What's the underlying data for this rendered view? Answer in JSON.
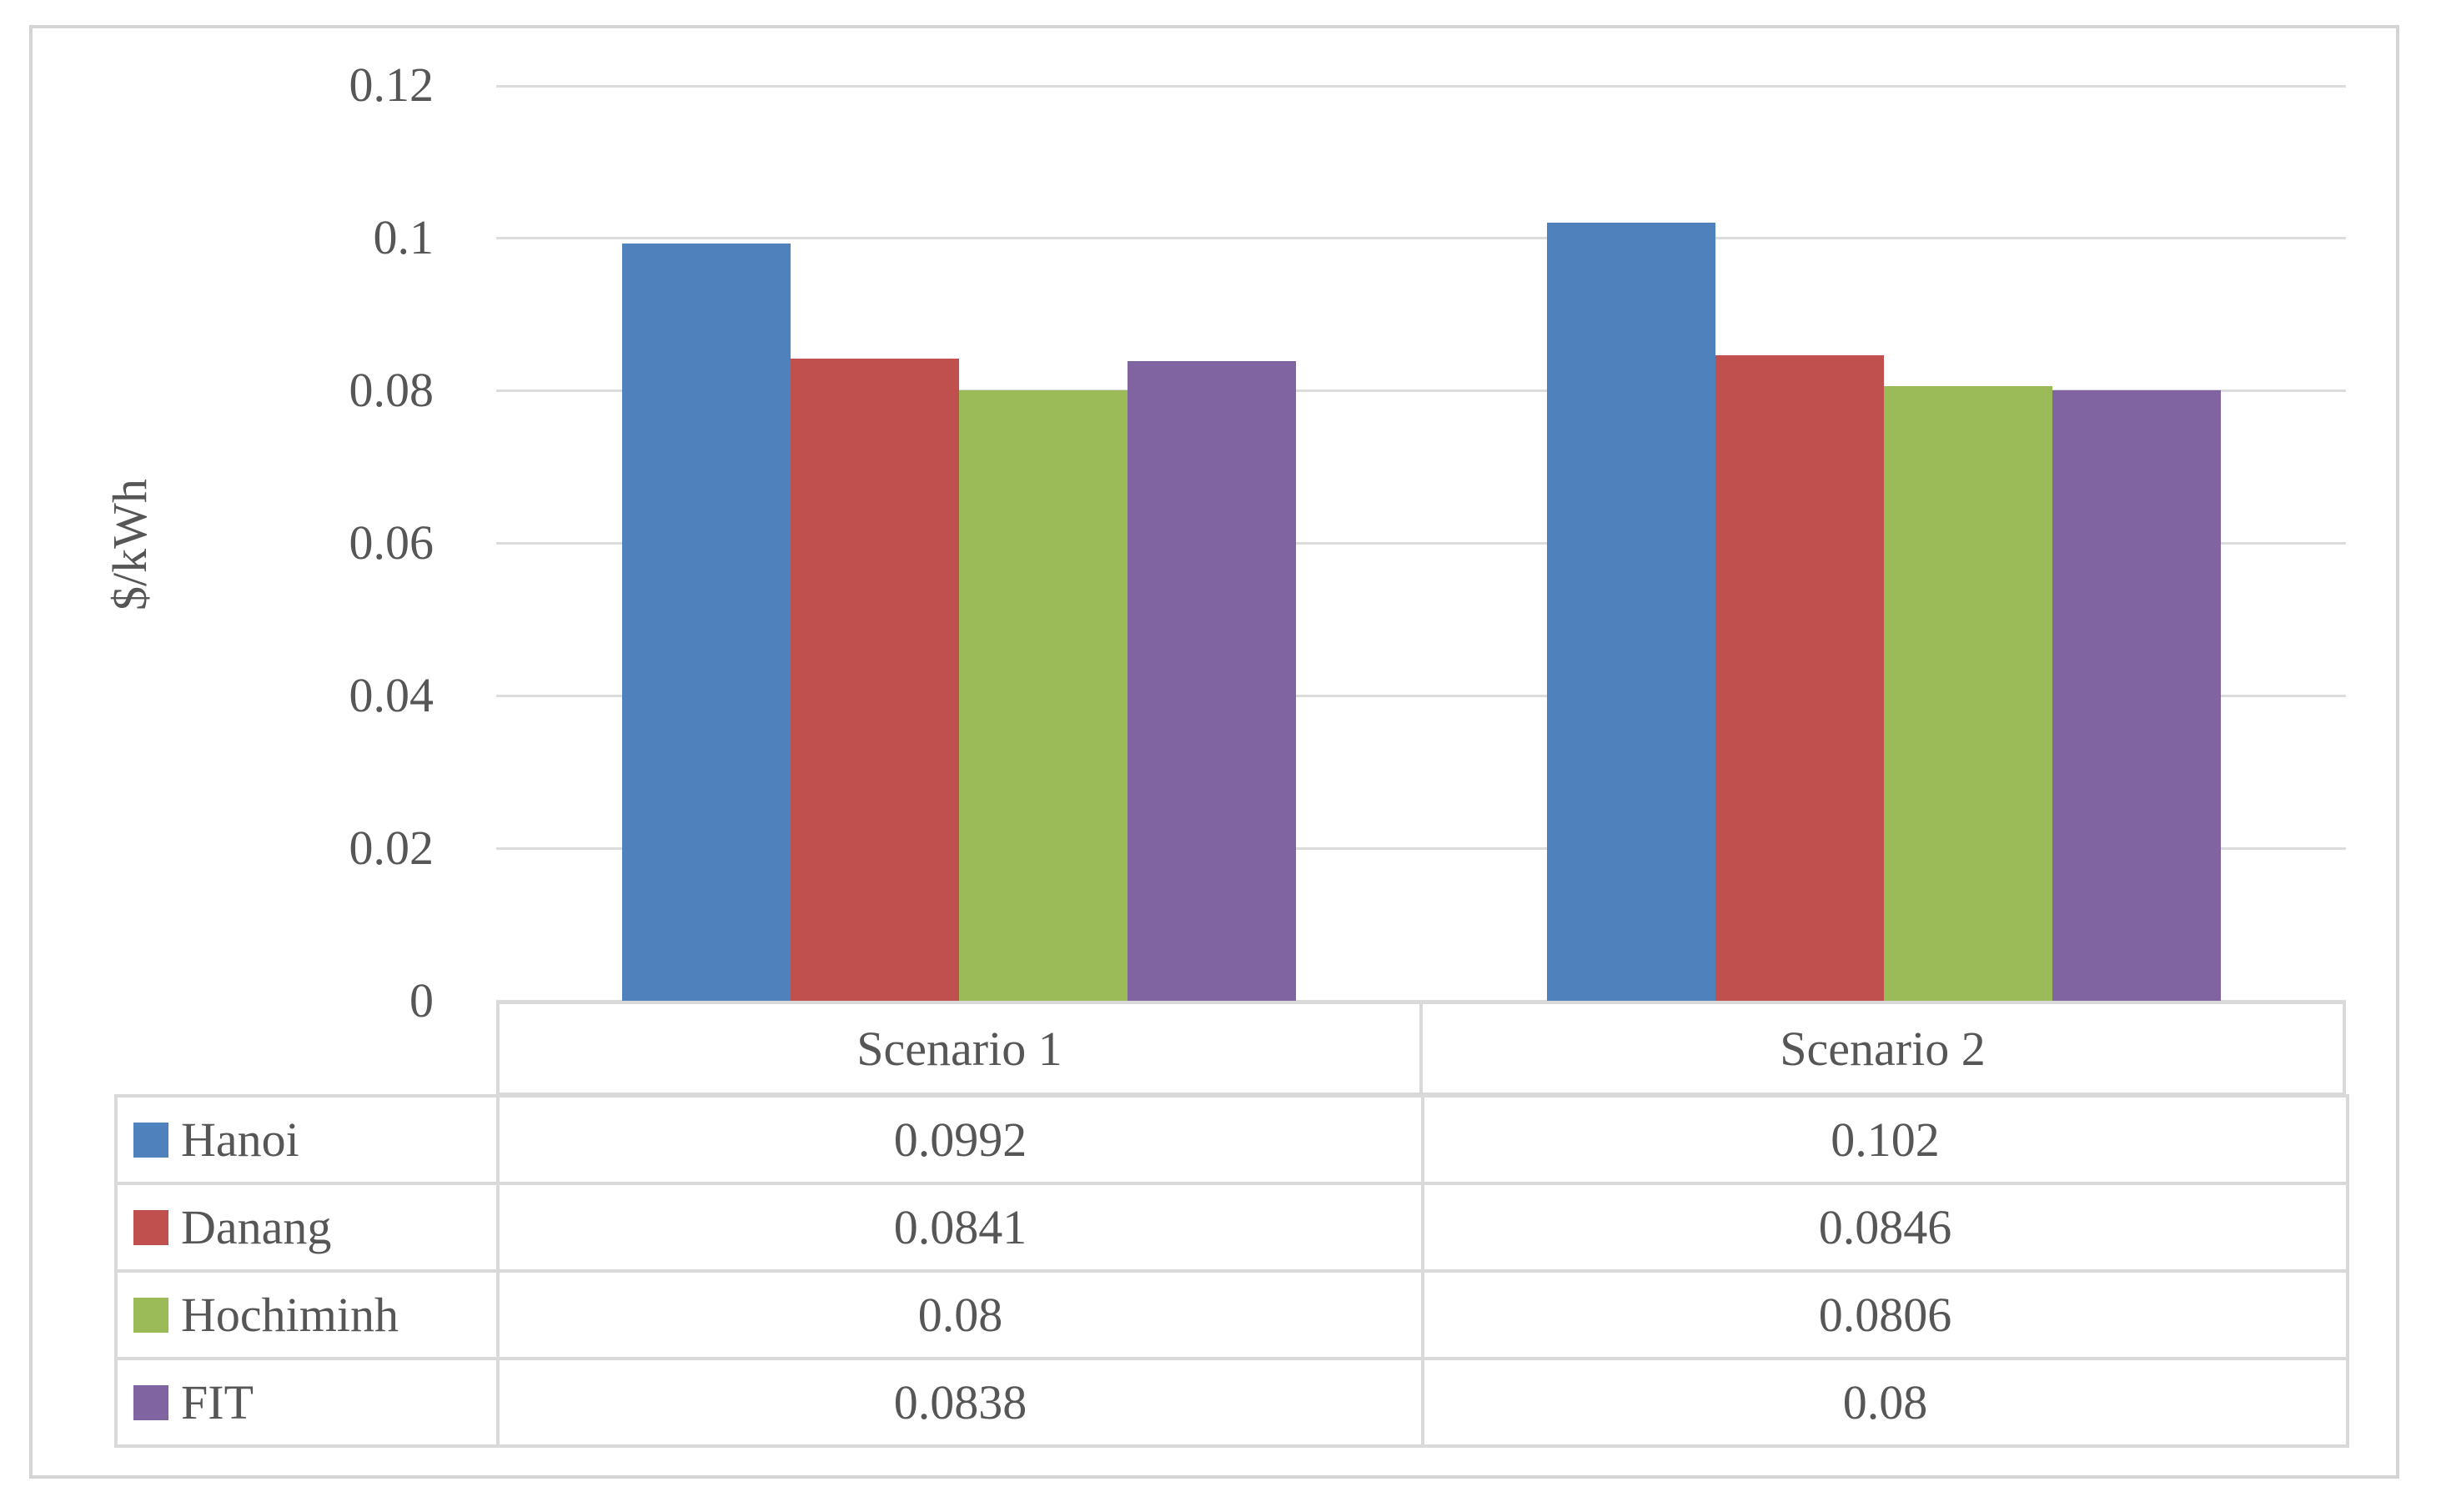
{
  "chart_data": {
    "type": "bar",
    "title": "",
    "categories": [
      "Scenario 1",
      "Scenario 2"
    ],
    "series": [
      {
        "name": "Hanoi",
        "color": "#4F81BD",
        "values": [
          0.0992,
          0.102
        ]
      },
      {
        "name": "Danang",
        "color": "#C0504D",
        "values": [
          0.0841,
          0.0846
        ]
      },
      {
        "name": "Hochiminh",
        "color": "#9BBB59",
        "values": [
          0.08,
          0.0806
        ]
      },
      {
        "name": "FIT",
        "color": "#8064A2",
        "values": [
          0.0838,
          0.08
        ]
      }
    ],
    "xlabel": "",
    "ylabel": "$/kWh",
    "ylim": [
      0,
      0.12
    ],
    "y_ticks": [
      0,
      0.02,
      0.04,
      0.06,
      0.08,
      0.1,
      0.12
    ],
    "y_tick_labels": [
      "0",
      "0.02",
      "0.04",
      "0.06",
      "0.08",
      "0.1",
      "0.12"
    ],
    "grid": true,
    "legend_position": "data-table-left-column",
    "layout": "clustered columns with data table below plot"
  },
  "colors": {
    "gridline": "#DCDCDC",
    "table_border": "#D9D9D9",
    "frame_border": "#D4D4D4",
    "text": "#565656",
    "background": "#FFFFFF"
  }
}
